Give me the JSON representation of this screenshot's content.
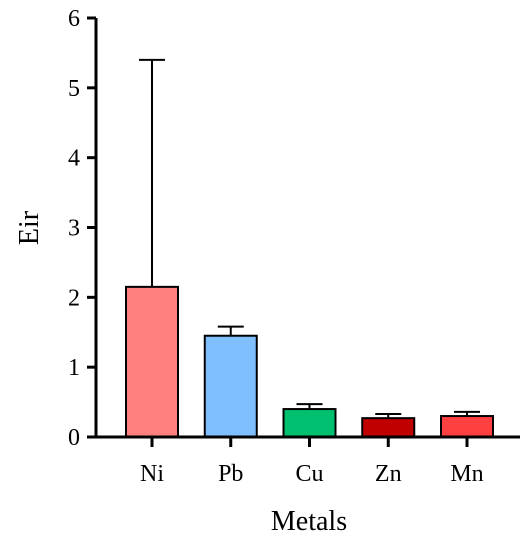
{
  "chart_data": {
    "type": "bar",
    "x_label": "Metals",
    "y_label": "Eir",
    "categories": [
      "Ni",
      "Pb",
      "Cu",
      "Zn",
      "Mn"
    ],
    "values": [
      2.15,
      1.45,
      0.4,
      0.27,
      0.3
    ],
    "errors": [
      3.25,
      0.13,
      0.07,
      0.06,
      0.06
    ],
    "colors": [
      "#ff7f7f",
      "#7fbfff",
      "#00c070",
      "#c00000",
      "#ff4040"
    ],
    "ylim": [
      0,
      6
    ],
    "yticks": [
      0,
      1,
      2,
      3,
      4,
      5,
      6
    ],
    "grid": false
  }
}
